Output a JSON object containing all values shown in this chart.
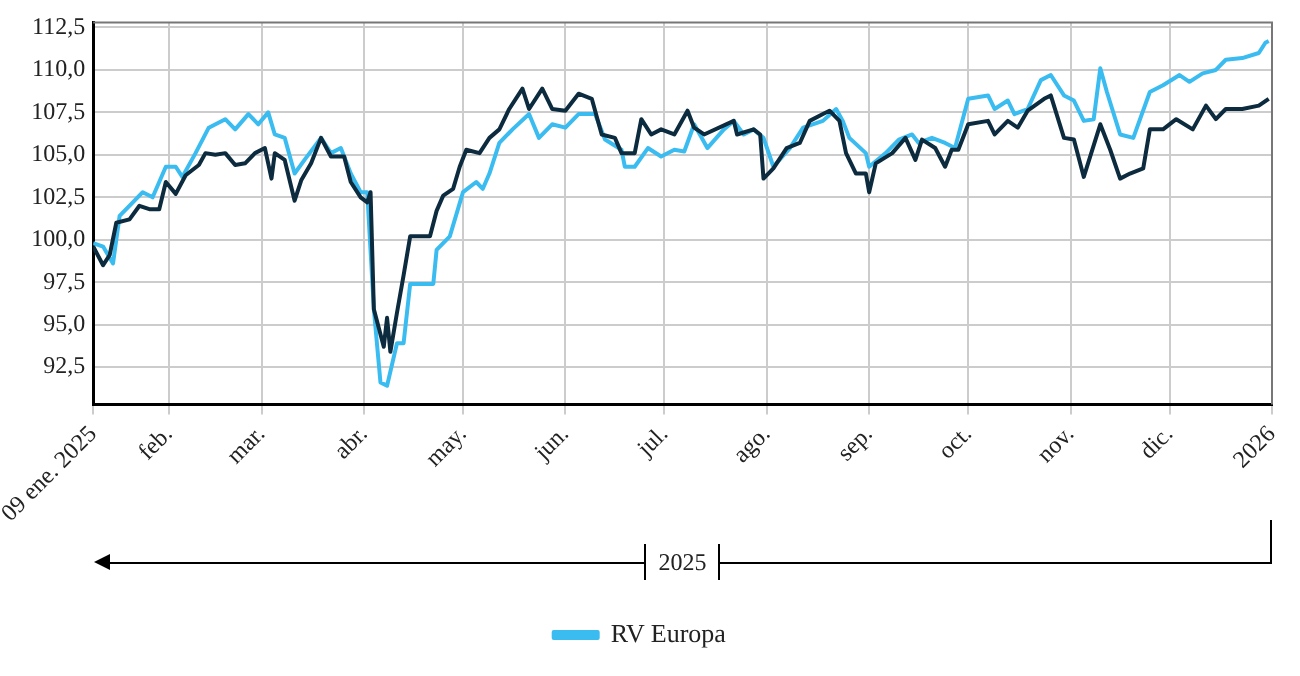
{
  "chart_data": {
    "type": "line",
    "annotations": [
      "2025"
    ],
    "xlim": [
      "2025-01-09",
      "2026-01-01"
    ],
    "xticks": [
      {
        "value": "2025-01-09",
        "label": "09 ene. 2025"
      },
      {
        "value": "2025-02-01",
        "label": "feb."
      },
      {
        "value": "2025-03-01",
        "label": "mar."
      },
      {
        "value": "2025-04-01",
        "label": "abr."
      },
      {
        "value": "2025-05-01",
        "label": "may."
      },
      {
        "value": "2025-06-01",
        "label": "jun."
      },
      {
        "value": "2025-07-01",
        "label": "jul."
      },
      {
        "value": "2025-08-01",
        "label": "ago."
      },
      {
        "value": "2025-09-01",
        "label": "sep."
      },
      {
        "value": "2025-10-01",
        "label": "oct."
      },
      {
        "value": "2025-11-01",
        "label": "nov."
      },
      {
        "value": "2025-12-01",
        "label": "dic."
      },
      {
        "value": "2026-01-01",
        "label": "2026"
      }
    ],
    "ylim": [
      90.3,
      112.8
    ],
    "yticks": [
      {
        "value": 92.5,
        "label": "92,5"
      },
      {
        "value": 95,
        "label": "95,0"
      },
      {
        "value": 97.5,
        "label": "97,5"
      },
      {
        "value": 100,
        "label": "100,0"
      },
      {
        "value": 102.5,
        "label": "102,5"
      },
      {
        "value": 105,
        "label": "105,0"
      },
      {
        "value": 107.5,
        "label": "107,5"
      },
      {
        "value": 110,
        "label": "110,0"
      },
      {
        "value": 112.5,
        "label": "112,5"
      }
    ],
    "grid": true,
    "legend": "bottom",
    "marker": "none",
    "line_style": "solid",
    "series": [
      {
        "color": "#0d2b3e",
        "x": [
          "2025-01-09",
          "2025-01-12",
          "2025-01-14",
          "2025-01-16",
          "2025-01-20",
          "2025-01-23",
          "2025-01-26",
          "2025-01-29",
          "2025-01-31",
          "2025-02-03",
          "2025-02-06",
          "2025-02-10",
          "2025-02-12",
          "2025-02-15",
          "2025-02-18",
          "2025-02-21",
          "2025-02-24",
          "2025-02-27",
          "2025-03-02",
          "2025-03-04",
          "2025-03-05",
          "2025-03-08",
          "2025-03-11",
          "2025-03-13",
          "2025-03-16",
          "2025-03-19",
          "2025-03-22",
          "2025-03-26",
          "2025-03-28",
          "2025-03-31",
          "2025-04-02",
          "2025-04-03",
          "2025-04-04",
          "2025-04-07",
          "2025-04-08",
          "2025-04-09",
          "2025-04-11",
          "2025-04-13",
          "2025-04-15",
          "2025-04-21",
          "2025-04-23",
          "2025-04-25",
          "2025-04-28",
          "2025-04-30",
          "2025-05-02",
          "2025-05-06",
          "2025-05-09",
          "2025-05-12",
          "2025-05-15",
          "2025-05-19",
          "2025-05-21",
          "2025-05-25",
          "2025-05-28",
          "2025-06-01",
          "2025-06-05",
          "2025-06-09",
          "2025-06-12",
          "2025-06-16",
          "2025-06-18",
          "2025-06-22",
          "2025-06-24",
          "2025-06-27",
          "2025-06-30",
          "2025-07-04",
          "2025-07-08",
          "2025-07-10",
          "2025-07-13",
          "2025-07-22",
          "2025-07-23",
          "2025-07-28",
          "2025-07-30",
          "2025-07-31",
          "2025-08-03",
          "2025-08-07",
          "2025-08-11",
          "2025-08-14",
          "2025-08-18",
          "2025-08-20",
          "2025-08-23",
          "2025-08-25",
          "2025-08-28",
          "2025-08-31",
          "2025-09-01",
          "2025-09-03",
          "2025-09-08",
          "2025-09-12",
          "2025-09-15",
          "2025-09-17",
          "2025-09-21",
          "2025-09-24",
          "2025-09-26",
          "2025-09-28",
          "2025-10-01",
          "2025-10-07",
          "2025-10-09",
          "2025-10-13",
          "2025-10-16",
          "2025-10-19",
          "2025-10-24",
          "2025-10-26",
          "2025-10-30",
          "2025-11-02",
          "2025-11-05",
          "2025-11-10",
          "2025-11-13",
          "2025-11-16",
          "2025-11-19",
          "2025-11-23",
          "2025-11-25",
          "2025-11-29",
          "2025-12-03",
          "2025-12-08",
          "2025-12-12",
          "2025-12-15",
          "2025-12-18",
          "2025-12-23",
          "2025-12-28",
          "2025-12-31"
        ],
        "values": [
          99.6,
          98.5,
          99.1,
          101.0,
          101.2,
          102.0,
          101.8,
          101.8,
          103.4,
          102.7,
          103.8,
          104.4,
          105.1,
          105.0,
          105.1,
          104.4,
          104.5,
          105.1,
          105.4,
          103.6,
          105.1,
          104.7,
          102.3,
          103.5,
          104.5,
          106.0,
          104.9,
          104.9,
          103.4,
          102.5,
          102.2,
          102.8,
          95.9,
          93.7,
          95.4,
          93.4,
          95.7,
          97.9,
          100.2,
          100.2,
          101.7,
          102.6,
          103.0,
          104.3,
          105.3,
          105.1,
          106.0,
          106.5,
          107.7,
          108.9,
          107.7,
          108.9,
          107.7,
          107.6,
          108.6,
          108.3,
          106.2,
          106.0,
          105.1,
          105.1,
          107.1,
          106.2,
          106.5,
          106.2,
          107.6,
          106.6,
          106.2,
          107.0,
          106.2,
          106.5,
          106.2,
          103.6,
          104.2,
          105.4,
          105.7,
          107.0,
          107.4,
          107.6,
          107.0,
          105.1,
          103.9,
          103.9,
          102.8,
          104.5,
          105.1,
          106.0,
          104.7,
          105.9,
          105.4,
          104.3,
          105.3,
          105.3,
          106.8,
          107.0,
          106.2,
          107.0,
          106.6,
          107.6,
          108.3,
          108.5,
          106.0,
          105.9,
          103.7,
          106.8,
          105.3,
          103.6,
          103.9,
          104.2,
          106.5,
          106.5,
          107.1,
          106.5,
          107.9,
          107.1,
          107.7,
          107.7,
          107.9,
          108.3
        ]
      },
      {
        "name": "RV Europa",
        "color": "#3bbcf0",
        "x": [
          "2025-01-09",
          "2025-01-12",
          "2025-01-15",
          "2025-01-17",
          "2025-01-21",
          "2025-01-24",
          "2025-01-27",
          "2025-01-31",
          "2025-02-03",
          "2025-02-05",
          "2025-02-09",
          "2025-02-13",
          "2025-02-18",
          "2025-02-21",
          "2025-02-25",
          "2025-02-28",
          "2025-03-03",
          "2025-03-05",
          "2025-03-08",
          "2025-03-11",
          "2025-03-14",
          "2025-03-19",
          "2025-03-22",
          "2025-03-25",
          "2025-03-28",
          "2025-03-31",
          "2025-04-02",
          "2025-04-04",
          "2025-04-06",
          "2025-04-08",
          "2025-04-11",
          "2025-04-13",
          "2025-04-15",
          "2025-04-22",
          "2025-04-23",
          "2025-04-27",
          "2025-05-01",
          "2025-05-05",
          "2025-05-07",
          "2025-05-09",
          "2025-05-12",
          "2025-05-16",
          "2025-05-21",
          "2025-05-24",
          "2025-05-28",
          "2025-06-01",
          "2025-06-05",
          "2025-06-10",
          "2025-06-13",
          "2025-06-18",
          "2025-06-19",
          "2025-06-22",
          "2025-06-26",
          "2025-06-30",
          "2025-07-04",
          "2025-07-07",
          "2025-07-10",
          "2025-07-14",
          "2025-07-19",
          "2025-07-22",
          "2025-07-25",
          "2025-07-28",
          "2025-07-31",
          "2025-08-03",
          "2025-08-08",
          "2025-08-12",
          "2025-08-18",
          "2025-08-22",
          "2025-08-24",
          "2025-08-26",
          "2025-08-31",
          "2025-09-01",
          "2025-09-06",
          "2025-09-10",
          "2025-09-14",
          "2025-09-16",
          "2025-09-20",
          "2025-09-24",
          "2025-09-27",
          "2025-10-01",
          "2025-10-07",
          "2025-10-09",
          "2025-10-13",
          "2025-10-15",
          "2025-10-19",
          "2025-10-23",
          "2025-10-26",
          "2025-10-30",
          "2025-11-02",
          "2025-11-05",
          "2025-11-08",
          "2025-11-10",
          "2025-11-12",
          "2025-11-16",
          "2025-11-20",
          "2025-11-25",
          "2025-11-29",
          "2025-12-04",
          "2025-12-07",
          "2025-12-11",
          "2025-12-15",
          "2025-12-18",
          "2025-12-23",
          "2025-12-28",
          "2025-12-30",
          "2025-12-31"
        ],
        "values": [
          99.8,
          99.6,
          98.6,
          101.4,
          102.2,
          102.8,
          102.5,
          104.3,
          104.3,
          103.7,
          105.1,
          106.6,
          107.1,
          106.5,
          107.4,
          106.8,
          107.5,
          106.2,
          106.0,
          103.9,
          104.7,
          106.0,
          105.1,
          105.4,
          103.9,
          102.8,
          102.8,
          95.9,
          91.6,
          91.4,
          93.9,
          93.9,
          97.4,
          97.4,
          99.4,
          100.2,
          102.8,
          103.4,
          103.0,
          103.9,
          105.7,
          106.5,
          107.4,
          106.0,
          106.8,
          106.6,
          107.4,
          107.4,
          105.9,
          105.3,
          104.3,
          104.3,
          105.4,
          104.9,
          105.3,
          105.2,
          106.8,
          105.4,
          106.5,
          107.0,
          106.2,
          106.5,
          106.0,
          104.3,
          105.4,
          106.6,
          107.0,
          107.7,
          107.0,
          106.0,
          105.1,
          104.3,
          105.1,
          105.9,
          106.2,
          105.7,
          106.0,
          105.7,
          105.4,
          108.3,
          108.5,
          107.7,
          108.2,
          107.4,
          107.7,
          109.4,
          109.7,
          108.5,
          108.2,
          107.0,
          107.1,
          110.1,
          108.7,
          106.2,
          106.0,
          108.7,
          109.1,
          109.7,
          109.3,
          109.8,
          110.0,
          110.6,
          110.7,
          111.0,
          111.6,
          111.7
        ]
      }
    ]
  }
}
